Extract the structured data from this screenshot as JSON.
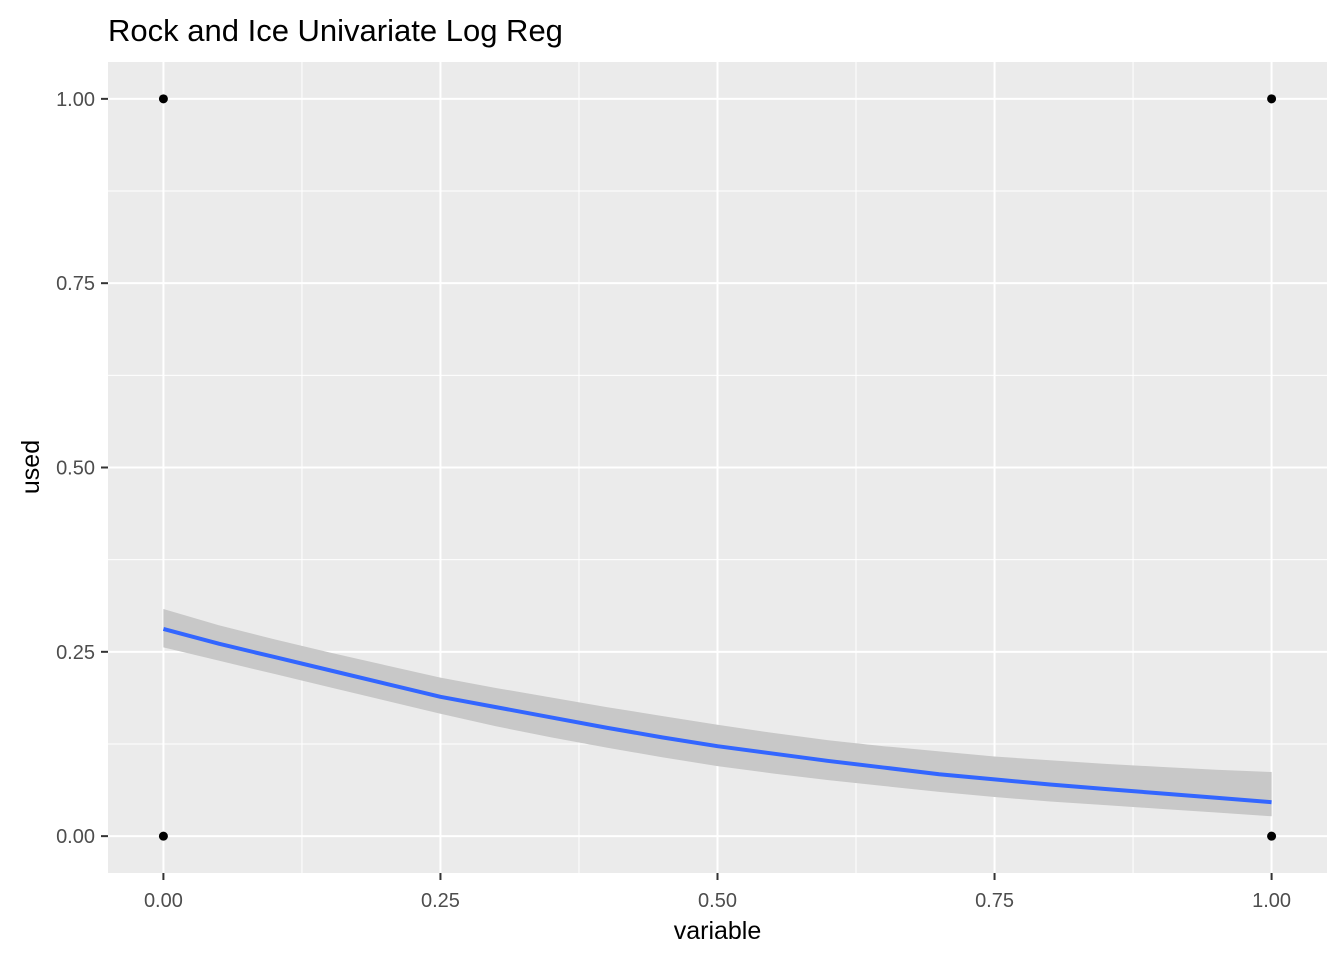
{
  "chart_data": {
    "type": "scatter",
    "title": "Rock and Ice Univariate Log Reg",
    "xlabel": "variable",
    "ylabel": "used",
    "xlim": [
      -0.05,
      1.05
    ],
    "ylim": [
      -0.05,
      1.05
    ],
    "x_ticks": [
      0,
      0.25,
      0.5,
      0.75,
      1
    ],
    "x_tick_labels": [
      "0.00",
      "0.25",
      "0.50",
      "0.75",
      "1.00"
    ],
    "y_ticks": [
      0,
      0.25,
      0.5,
      0.75,
      1
    ],
    "y_tick_labels": [
      "0.00",
      "0.25",
      "0.50",
      "0.75",
      "1.00"
    ],
    "grid": true,
    "legend": "none",
    "points": [
      {
        "x": 0,
        "y": 1
      },
      {
        "x": 0,
        "y": 0
      },
      {
        "x": 1,
        "y": 1
      },
      {
        "x": 1,
        "y": 0
      }
    ],
    "fit_line": {
      "x": [
        0,
        0.05,
        0.1,
        0.15,
        0.2,
        0.25,
        0.3,
        0.35,
        0.4,
        0.45,
        0.5,
        0.55,
        0.6,
        0.65,
        0.7,
        0.75,
        0.8,
        0.85,
        0.9,
        0.95,
        1
      ],
      "y": [
        0.281,
        0.261,
        0.243,
        0.225,
        0.207,
        0.189,
        0.175,
        0.161,
        0.147,
        0.134,
        0.122,
        0.112,
        0.102,
        0.093,
        0.084,
        0.077,
        0.07,
        0.064,
        0.058,
        0.052,
        0.046
      ],
      "lower": [
        0.256,
        0.238,
        0.22,
        0.202,
        0.184,
        0.166,
        0.149,
        0.134,
        0.12,
        0.107,
        0.095,
        0.085,
        0.076,
        0.068,
        0.06,
        0.053,
        0.047,
        0.042,
        0.037,
        0.032,
        0.027
      ],
      "upper": [
        0.308,
        0.286,
        0.267,
        0.249,
        0.232,
        0.215,
        0.201,
        0.188,
        0.175,
        0.163,
        0.151,
        0.14,
        0.13,
        0.122,
        0.115,
        0.108,
        0.103,
        0.098,
        0.094,
        0.09,
        0.087
      ]
    },
    "colors": {
      "panel": "#EBEBEB",
      "grid_major": "#FFFFFF",
      "points": "#000000",
      "fit_line": "#3366FF",
      "ribbon": "#C8C8C8",
      "tick_text": "#4D4D4D"
    }
  }
}
